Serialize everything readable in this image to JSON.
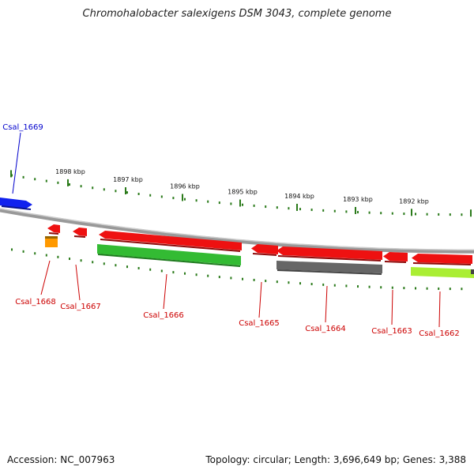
{
  "title": "Chromohalobacter salexigens DSM 3043, complete genome",
  "accession": "Accession: NC_007963",
  "summary": "Topology: circular; Length: 3,696,649 bp; Genes: 3,388",
  "colors": {
    "backbone": "#888888",
    "ticks": "#2a7a1a",
    "red": "#ee1111",
    "green": "#33bb33",
    "gray": "#666666",
    "lime": "#aaee33",
    "orange": "#ff9900",
    "blue": "#1122ee",
    "label_red": "#cc0000",
    "label_blue": "#0000cc"
  },
  "ticks": [
    "1898 kbp",
    "1897 kbp",
    "1896 kbp",
    "1895 kbp",
    "1894 kbp",
    "1893 kbp",
    "1892 kbp"
  ],
  "genes": [
    {
      "id": "Csal_1669",
      "color": "blue",
      "label_color": "label_blue"
    },
    {
      "id": "Csal_1668",
      "color": "red",
      "label_color": "label_red"
    },
    {
      "id": "Csal_1667",
      "color": "red",
      "label_color": "label_red"
    },
    {
      "id": "Csal_1666",
      "color": "red",
      "label_color": "label_red"
    },
    {
      "id": "Csal_1665",
      "color": "red",
      "label_color": "label_red"
    },
    {
      "id": "Csal_1664",
      "color": "red",
      "label_color": "label_red"
    },
    {
      "id": "Csal_1663",
      "color": "red",
      "label_color": "label_red"
    },
    {
      "id": "Csal_1662",
      "color": "red",
      "label_color": "label_red"
    }
  ]
}
